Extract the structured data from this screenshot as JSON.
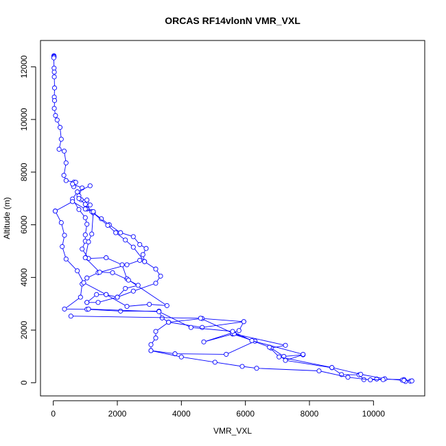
{
  "chart_data": {
    "type": "line",
    "title": "ORCAS RF14vlonN VMR_VXL",
    "xlabel": "VMR_VXL",
    "ylabel": "Altitude (m)",
    "xlim": [
      -400,
      11600
    ],
    "ylim": [
      -500,
      13000
    ],
    "x_ticks": [
      0,
      2000,
      4000,
      6000,
      8000,
      10000
    ],
    "y_ticks": [
      0,
      2000,
      4000,
      6000,
      8000,
      10000,
      12000
    ],
    "grid": false,
    "legend": "none",
    "series": [
      {
        "color": "#0000ff",
        "points": [
          [
            20,
            12420
          ],
          [
            20,
            12400
          ],
          [
            25,
            12380
          ],
          [
            15,
            12340
          ],
          [
            25,
            11950
          ],
          [
            30,
            11800
          ],
          [
            30,
            11620
          ],
          [
            40,
            11200
          ],
          [
            30,
            10850
          ],
          [
            40,
            10720
          ],
          [
            30,
            10420
          ],
          [
            70,
            10150
          ],
          [
            120,
            9980
          ],
          [
            210,
            9700
          ],
          [
            250,
            9250
          ],
          [
            180,
            8870
          ],
          [
            340,
            8800
          ],
          [
            400,
            8350
          ],
          [
            330,
            7880
          ],
          [
            400,
            7680
          ],
          [
            650,
            7620
          ],
          [
            700,
            7610
          ],
          [
            640,
            7450
          ],
          [
            600,
            7550
          ],
          [
            900,
            7400
          ],
          [
            800,
            7100
          ],
          [
            870,
            6950
          ],
          [
            1050,
            6940
          ],
          [
            1150,
            6750
          ],
          [
            1050,
            6600
          ],
          [
            1250,
            6450
          ],
          [
            1500,
            6230
          ],
          [
            1750,
            6000
          ],
          [
            2100,
            5700
          ],
          [
            2500,
            5550
          ],
          [
            2700,
            5250
          ],
          [
            2900,
            5100
          ],
          [
            2800,
            4870
          ],
          [
            2850,
            4600
          ],
          [
            2700,
            4650
          ],
          [
            2300,
            4480
          ],
          [
            1400,
            4180
          ],
          [
            1050,
            3980
          ],
          [
            900,
            3750
          ],
          [
            850,
            3250
          ],
          [
            350,
            2800
          ],
          [
            1050,
            2790
          ],
          [
            2100,
            2720
          ],
          [
            3300,
            2720
          ],
          [
            3400,
            2460
          ],
          [
            3600,
            2300
          ],
          [
            4650,
            2440
          ],
          [
            5950,
            2320
          ],
          [
            4650,
            2100
          ],
          [
            3600,
            2300
          ],
          [
            3200,
            1950
          ],
          [
            3200,
            1700
          ],
          [
            3050,
            1450
          ],
          [
            3050,
            1220
          ],
          [
            3800,
            1100
          ],
          [
            5400,
            1080
          ],
          [
            6300,
            1580
          ],
          [
            5600,
            1850
          ],
          [
            4700,
            1550
          ],
          [
            5800,
            1980
          ],
          [
            5950,
            2320
          ]
        ]
      },
      {
        "color": "#0000ff",
        "points": [
          [
            5600,
            1870
          ],
          [
            7250,
            1420
          ],
          [
            6800,
            1320
          ],
          [
            7200,
            1000
          ],
          [
            7800,
            1060
          ],
          [
            7250,
            850
          ],
          [
            8700,
            570
          ],
          [
            9000,
            310
          ],
          [
            9550,
            300
          ],
          [
            9700,
            120
          ],
          [
            10100,
            140
          ],
          [
            10950,
            120
          ],
          [
            11150,
            60
          ],
          [
            11000,
            50
          ],
          [
            10900,
            100
          ]
        ]
      },
      {
        "color": "#0000ff",
        "points": [
          [
            550,
            2530
          ],
          [
            4600,
            2450
          ],
          [
            5650,
            1860
          ],
          [
            6750,
            1350
          ],
          [
            7050,
            980
          ],
          [
            8700,
            580
          ],
          [
            9600,
            320
          ],
          [
            10350,
            150
          ],
          [
            10950,
            90
          ],
          [
            11200,
            70
          ]
        ]
      },
      {
        "color": "#0000ff",
        "points": [
          [
            1100,
            2800
          ],
          [
            3300,
            2700
          ],
          [
            4300,
            2100
          ],
          [
            5600,
            1950
          ],
          [
            6200,
            1600
          ],
          [
            7800,
            1080
          ]
        ]
      },
      {
        "color": "#0000ff",
        "points": [
          [
            3050,
            1220
          ],
          [
            4000,
            980
          ],
          [
            5050,
            780
          ],
          [
            5900,
            620
          ],
          [
            6350,
            550
          ],
          [
            8300,
            450
          ],
          [
            9200,
            210
          ],
          [
            9900,
            110
          ],
          [
            10300,
            120
          ]
        ]
      },
      {
        "color": "#0000ff",
        "points": [
          [
            1050,
            3050
          ],
          [
            1350,
            3350
          ],
          [
            1650,
            3350
          ],
          [
            2000,
            3250
          ],
          [
            2500,
            3480
          ],
          [
            3200,
            3780
          ],
          [
            3350,
            4050
          ],
          [
            3200,
            4320
          ],
          [
            2850,
            4600
          ],
          [
            2500,
            5150
          ],
          [
            2250,
            5420
          ],
          [
            1950,
            5700
          ],
          [
            1700,
            5980
          ],
          [
            1200,
            6500
          ],
          [
            1000,
            6780
          ],
          [
            800,
            7000
          ]
        ]
      },
      {
        "color": "#0000ff",
        "points": [
          [
            60,
            6520
          ],
          [
            250,
            6080
          ],
          [
            350,
            5600
          ],
          [
            280,
            5170
          ],
          [
            400,
            4700
          ],
          [
            750,
            4250
          ],
          [
            950,
            3800
          ],
          [
            1650,
            3350
          ],
          [
            2300,
            2900
          ],
          [
            3000,
            2980
          ],
          [
            3550,
            2930
          ],
          [
            2300,
            3950
          ],
          [
            2150,
            4480
          ],
          [
            1650,
            4750
          ],
          [
            1100,
            4720
          ],
          [
            900,
            5080
          ],
          [
            1000,
            5380
          ],
          [
            1000,
            5620
          ],
          [
            1050,
            6020
          ],
          [
            1000,
            6270
          ],
          [
            800,
            6580
          ],
          [
            600,
            6980
          ],
          [
            750,
            7250
          ],
          [
            1150,
            7480
          ]
        ]
      },
      {
        "color": "#0000ff",
        "points": [
          [
            60,
            6520
          ],
          [
            600,
            6880
          ],
          [
            1000,
            6600
          ],
          [
            1250,
            6500
          ],
          [
            1200,
            5650
          ],
          [
            1100,
            5350
          ],
          [
            1000,
            4750
          ],
          [
            1450,
            4200
          ],
          [
            1850,
            4180
          ],
          [
            2350,
            3900
          ],
          [
            2650,
            3700
          ],
          [
            2250,
            3580
          ],
          [
            2000,
            3250
          ],
          [
            1400,
            3050
          ],
          [
            1050,
            3050
          ]
        ]
      }
    ]
  }
}
